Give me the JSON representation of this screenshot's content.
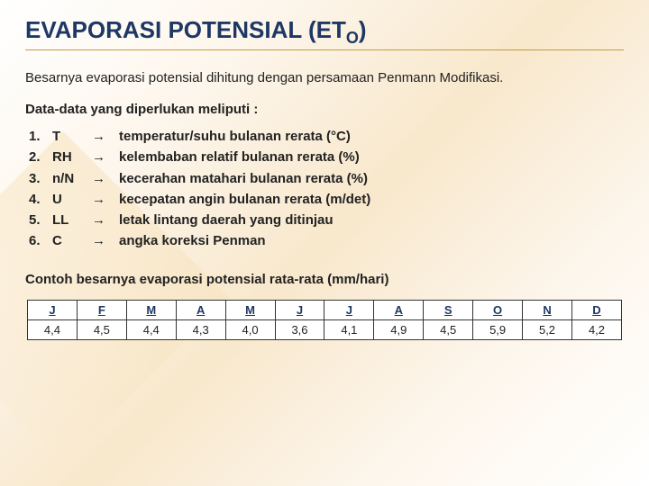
{
  "title_main": "EVAPORASI POTENSIAL (ET",
  "title_sub": "O",
  "title_close": ")",
  "intro": "Besarnya evaporasi potensial dihitung dengan persamaan Penmann Modifikasi.",
  "subhead": "Data-data yang diperlukan meliputi :",
  "arrow": "→",
  "items": [
    {
      "num": "1.",
      "sym": "T",
      "desc": "temperatur/suhu bulanan rerata (°C)"
    },
    {
      "num": "2.",
      "sym": "RH",
      "desc": "kelembaban relatif bulanan rerata (%)"
    },
    {
      "num": "3.",
      "sym": "n/N",
      "desc": "kecerahan matahari bulanan rerata (%)"
    },
    {
      "num": "4.",
      "sym": "U",
      "desc": "kecepatan angin bulanan rerata (m/det)"
    },
    {
      "num": "5.",
      "sym": "LL",
      "desc": "letak lintang daerah yang ditinjau"
    },
    {
      "num": "6.",
      "sym": "C",
      "desc": "angka koreksi Penman"
    }
  ],
  "footnote": "Contoh besarnya evaporasi potensial rata-rata (mm/hari)",
  "table": {
    "columns": [
      "J",
      "F",
      "M",
      "A",
      "M",
      "J",
      "J",
      "A",
      "S",
      "O",
      "N",
      "D"
    ],
    "rows": [
      [
        "4,4",
        "4,5",
        "4,4",
        "4,3",
        "4,0",
        "3,6",
        "4,1",
        "4,9",
        "4,5",
        "5,9",
        "5,2",
        "4,2"
      ]
    ],
    "border_color": "#333333",
    "header_color": "#1e3764",
    "cell_color": "#222222",
    "background": "#ffffff",
    "font_size": 13
  },
  "colors": {
    "title": "#1e3764",
    "rule": "#c99a3a",
    "text": "#222222",
    "bg_gradient": [
      "#ffffff",
      "#fdf6ec",
      "#f8e8cc"
    ]
  }
}
